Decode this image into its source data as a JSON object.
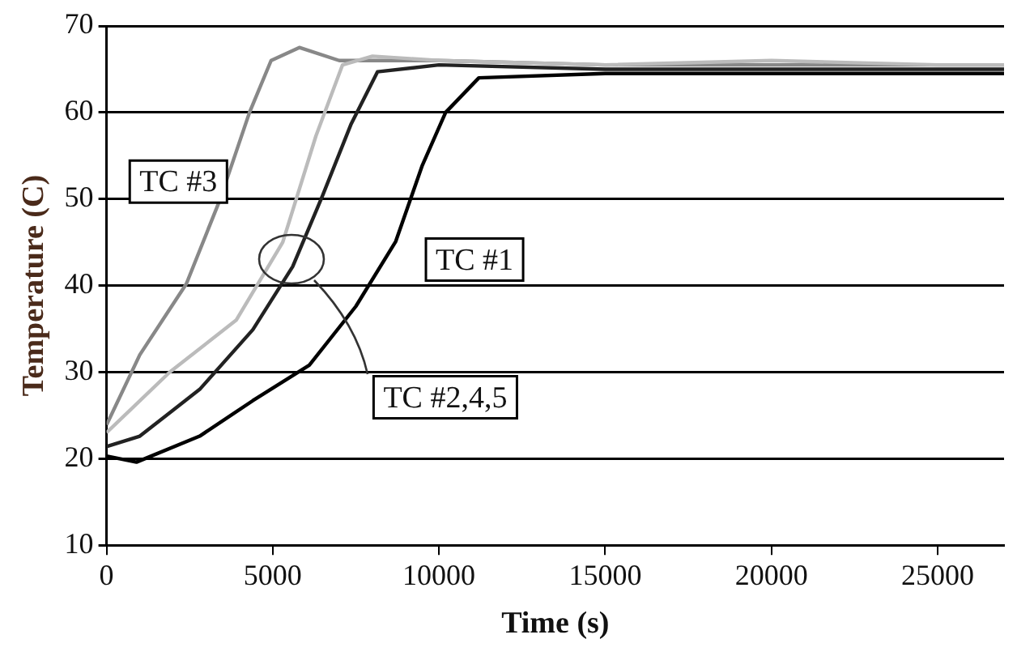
{
  "chart_data": {
    "type": "line",
    "xlabel": "Time (s)",
    "ylabel": "Temperature (C)",
    "xlim": [
      0,
      27000
    ],
    "xticks": [
      0,
      5000,
      10000,
      15000,
      20000,
      25000
    ],
    "ylim": [
      10,
      70
    ],
    "yticks": [
      10,
      20,
      30,
      40,
      50,
      60,
      70
    ],
    "grid": "y",
    "legend": false,
    "marker": "none",
    "line_style": "solid",
    "series": [
      {
        "color": "#bbbbbb",
        "x": [
          0,
          1900,
          3900,
          5300,
          6300,
          7100,
          8000,
          10000,
          15000,
          20000,
          25000,
          27000
        ],
        "values": [
          23,
          30,
          36,
          45,
          57.3,
          65.5,
          66.5,
          66,
          65.5,
          66,
          65.5,
          65.5
        ]
      },
      {
        "color": "#888888",
        "x": [
          0,
          1000,
          2400,
          3400,
          4300,
          4950,
          5800,
          7000,
          10000,
          15000,
          20000,
          25000,
          27000
        ],
        "values": [
          23.9,
          32,
          40.2,
          49.8,
          60,
          66,
          67.5,
          66,
          66,
          65.5,
          65.5,
          65.5,
          65.5
        ]
      },
      {
        "color": "#222222",
        "x": [
          0,
          1000,
          2800,
          4400,
          5600,
          6500,
          7350,
          8150,
          10000,
          15000,
          20000,
          25000,
          27000
        ],
        "values": [
          21.4,
          22.6,
          28,
          34.9,
          42.2,
          50.4,
          58.6,
          64.7,
          65.5,
          65,
          65,
          65,
          65
        ]
      },
      {
        "color": "#000000",
        "x": [
          0,
          900,
          2800,
          4400,
          6100,
          7500,
          8700,
          9500,
          10200,
          11200,
          15000,
          20000,
          25000,
          27000
        ],
        "values": [
          20.3,
          19.6,
          22.6,
          26.7,
          30.8,
          37.6,
          45.1,
          53.9,
          60,
          64,
          64.5,
          64.5,
          64.5,
          64.5
        ]
      }
    ],
    "annotations": [
      "TC #3",
      "TC #1",
      "TC #2,4,5"
    ]
  }
}
